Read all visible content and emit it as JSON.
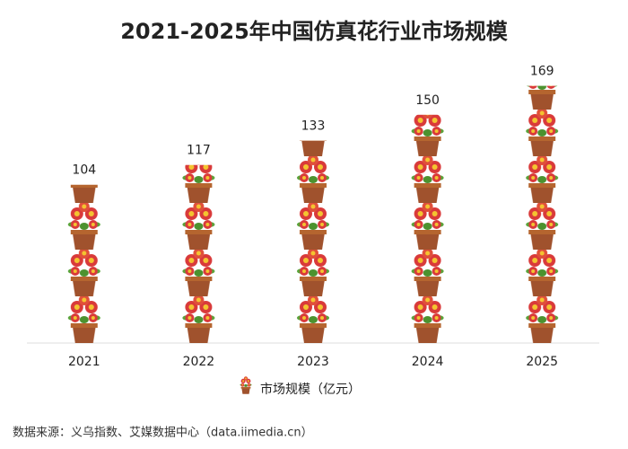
{
  "chart_data": {
    "type": "bar",
    "title": "2021-2025年中国仿真花行业市场规模",
    "categories": [
      "2021",
      "2022",
      "2023",
      "2024",
      "2025"
    ],
    "series": [
      {
        "name": "市场规模（亿元）",
        "values": [
          104,
          117,
          133,
          150,
          169
        ]
      }
    ],
    "ylim": [
      0,
      190
    ],
    "source": "数据来源：义乌指数、艾媒数据中心（data.iimedia.cn）"
  }
}
